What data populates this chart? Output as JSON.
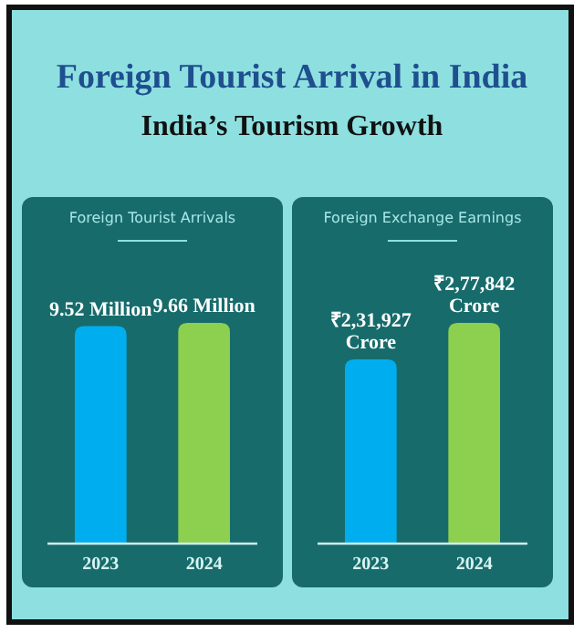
{
  "chart_data": [
    {
      "type": "other",
      "title": "Foreign Tourist Arrival in India",
      "subtitle": "India’s Tourism Growth"
    },
    {
      "type": "bar",
      "title": "Foreign Tourist Arrivals",
      "categories": [
        "2023",
        "2024"
      ],
      "values": [
        9.52,
        9.66
      ],
      "colors": [
        "#00aeef",
        "#8dcf4f"
      ],
      "value_labels": [
        "9.52 Million",
        "9.66 Million"
      ]
    },
    {
      "type": "bar",
      "title": "Foreign Exchange Earnings",
      "categories": [
        "2023",
        "2024"
      ],
      "values": [
        231927,
        277842
      ],
      "colors": [
        "#00aeef",
        "#8dcf4f"
      ],
      "value_labels": [
        "₹2,31,927 Crore",
        "₹2,77,842 Crore"
      ]
    }
  ]
}
